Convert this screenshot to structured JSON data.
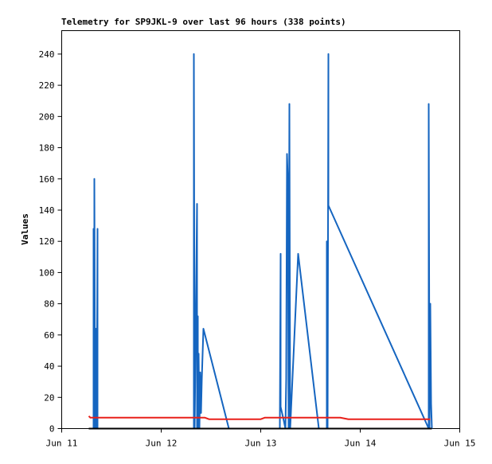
{
  "chart_data": {
    "type": "line",
    "title": "Telemetry for SP9JKL-9 over last 96 hours (338 points)",
    "y_label": "Values",
    "xlim": [
      0,
      4
    ],
    "xticks": [
      {
        "value": 0,
        "label": "Jun 11"
      },
      {
        "value": 1,
        "label": "Jun 12"
      },
      {
        "value": 2,
        "label": "Jun 13"
      },
      {
        "value": 3,
        "label": "Jun 14"
      },
      {
        "value": 4,
        "label": "Jun 15"
      }
    ],
    "ylim": [
      0,
      255
    ],
    "yticks": [
      0,
      20,
      40,
      60,
      80,
      100,
      120,
      140,
      160,
      180,
      200,
      220,
      240
    ],
    "series": [
      {
        "color": "#000000",
        "x": [
          0.272,
          3.72
        ],
        "values": [
          0,
          0
        ]
      },
      {
        "color": "#e8201a",
        "x": [
          0.272,
          0.288,
          1.44,
          1.48,
          2.0,
          2.04,
          2.8,
          2.88,
          3.6,
          3.704
        ],
        "values": [
          8,
          7,
          7,
          6,
          6,
          7,
          7,
          6,
          6,
          6
        ]
      },
      {
        "color": "#1565c0",
        "x": [
          0.32,
          0.32,
          0.328,
          0.328,
          0.336,
          0.344,
          0.352,
          0.36,
          0.36,
          1.328,
          1.328,
          1.336,
          1.36,
          1.36,
          1.368,
          1.368,
          1.376,
          1.384,
          1.392,
          1.4,
          1.408,
          1.424,
          1.68,
          2.192,
          2.2,
          2.2,
          2.232,
          2.248,
          2.256,
          2.264,
          2.272,
          2.28,
          2.288,
          2.296,
          2.376,
          2.584,
          2.664,
          2.664,
          2.672,
          2.68,
          2.68,
          3.688,
          3.688,
          3.696,
          3.704,
          3.712,
          3.72
        ],
        "values": [
          0,
          128,
          0,
          160,
          0,
          64,
          0,
          128,
          0,
          0,
          240,
          0,
          144,
          0,
          72,
          0,
          48,
          0,
          36,
          10,
          32,
          64,
          0,
          0,
          112,
          14,
          5,
          0,
          32,
          176,
          160,
          0,
          208,
          0,
          112,
          0,
          0,
          120,
          0,
          240,
          143,
          0,
          208,
          0,
          80,
          16,
          0
        ]
      }
    ]
  }
}
